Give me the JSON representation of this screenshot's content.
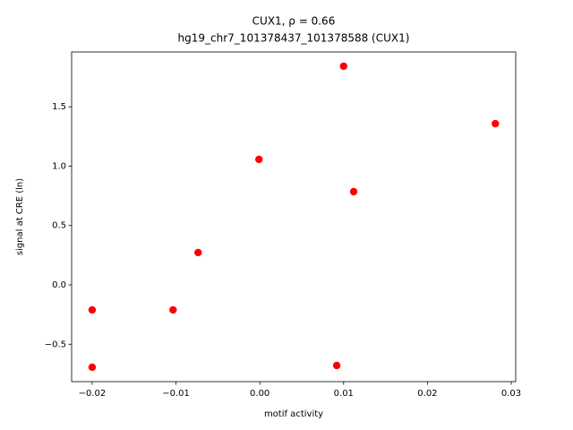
{
  "chart_data": {
    "type": "scatter",
    "title": "CUX1, ρ = 0.66",
    "subtitle": "hg19_chr7_101378437_101378588 (CUX1)",
    "x_label": "motif activity",
    "y_label": "signal at CRE (ln)",
    "color": "#ff0000",
    "x": [
      -0.02,
      -0.02,
      -0.01035,
      -0.00736,
      -0.0001,
      0.00918,
      0.01,
      0.0112,
      0.0281
    ],
    "values": [
      -0.211,
      -0.694,
      -0.211,
      0.272,
      1.057,
      -0.679,
      1.842,
      0.785,
      1.358
    ],
    "xlim": [
      -0.02245,
      0.03053
    ],
    "ylim": [
      -0.815,
      1.962
    ],
    "xticks": [
      {
        "value": -0.02,
        "label": "−0.02"
      },
      {
        "value": -0.01,
        "label": "−0.01"
      },
      {
        "value": 0,
        "label": "0.00"
      },
      0.01,
      0.02,
      0.03
    ],
    "yticks": [
      {
        "value": -0.5,
        "label": "−0.5"
      },
      {
        "value": 0,
        "label": "0.0"
      },
      0.5,
      {
        "value": 1,
        "label": "1.0"
      },
      1.5
    ]
  }
}
